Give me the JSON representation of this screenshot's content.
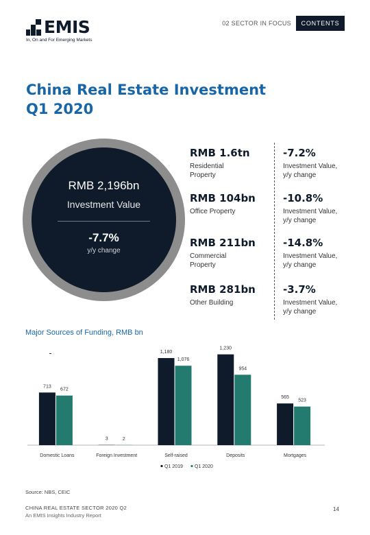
{
  "header": {
    "logo_text": "EMIS",
    "logo_tagline": "In, On and For Emerging Markets",
    "section_label": "02 SECTOR IN FOCUS",
    "contents_label": "CONTENTS"
  },
  "title": {
    "line1": "China Real Estate Investment",
    "line2": "Q1 2020"
  },
  "summary": {
    "value": "RMB 2,196bn",
    "label": "Investment Value",
    "change": "-7.7%",
    "change_label": "y/y change"
  },
  "stats": [
    {
      "value": "RMB 1.6tn",
      "desc1": "Residential",
      "desc2": "Property",
      "change": "-7.2%",
      "change_desc1": "Investment Value,",
      "change_desc2": "y/y change"
    },
    {
      "value": "RMB 104bn",
      "desc1": "Office Property",
      "desc2": "",
      "change": "-10.8%",
      "change_desc1": "Investment Value,",
      "change_desc2": "y/y change"
    },
    {
      "value": "RMB 211bn",
      "desc1": "Commercial",
      "desc2": "Property",
      "change": "-14.8%",
      "change_desc1": "Investment Value,",
      "change_desc2": "y/y change"
    },
    {
      "value": "RMB 281bn",
      "desc1": "Other Building",
      "desc2": "",
      "change": "-3.7%",
      "change_desc1": "Investment Value,",
      "change_desc2": "y/y change"
    }
  ],
  "colors": {
    "navy": "#0f1b2a",
    "teal": "#237a6f",
    "blue": "#1866a8",
    "gray_ring": "#8d8d8d"
  },
  "chart_data": {
    "type": "bar",
    "title": "Major Sources of Funding, RMB bn",
    "categories": [
      "Domestic Loans",
      "Foreign Investment",
      "Self-raised",
      "Deposits",
      "Mortgages"
    ],
    "series": [
      {
        "name": "Q1 2019",
        "color": "#0f1b2a",
        "values": [
          713,
          3,
          1180,
          1230,
          565
        ],
        "labels": [
          "713",
          "3",
          "1,180",
          "1,230",
          "565"
        ]
      },
      {
        "name": "Q1 2020",
        "color": "#237a6f",
        "values": [
          672,
          2,
          1076,
          954,
          523
        ],
        "labels": [
          "672",
          "2",
          "1,076",
          "954",
          "523"
        ]
      }
    ],
    "ylim": [
      0,
      1300
    ],
    "grid": false,
    "legend": "bottom"
  },
  "footer": {
    "source": "Source:  NBS, CEIC",
    "report_title": "CHINA REAL ESTATE SECTOR 2020 Q2",
    "report_subtitle": "An EMIS Insights Industry Report",
    "page_number": "14"
  }
}
